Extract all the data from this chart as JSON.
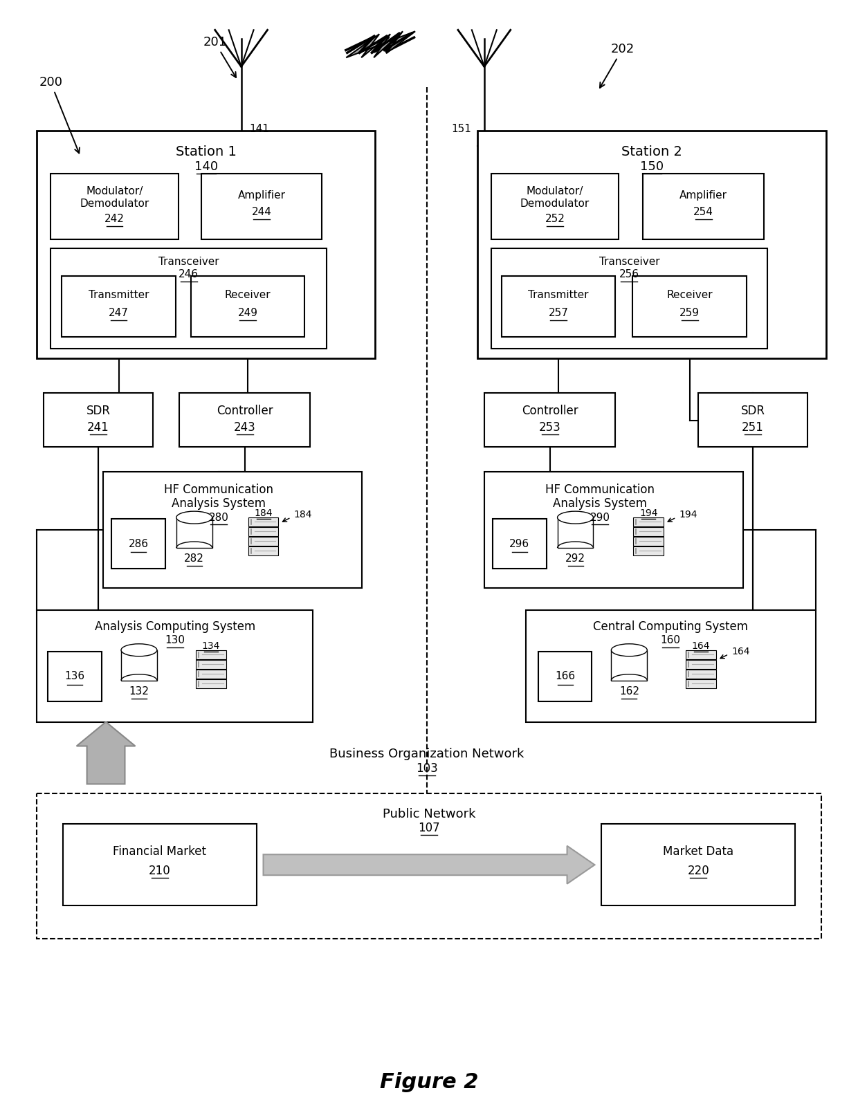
{
  "bg_color": "#ffffff",
  "line_color": "#000000",
  "figure_title": "Figure 2",
  "labels": {
    "200": "200",
    "201": "201",
    "202": "202",
    "141": "141",
    "151": "151",
    "station1": "Station 1",
    "s1num": "140",
    "station2": "Station 2",
    "s2num": "150",
    "mod1": "Modulator/",
    "demod1": "Demodulator",
    "mn1": "242",
    "amp1": "Amplifier",
    "an1": "244",
    "tc1": "Transceiver",
    "tcn1": "246",
    "tx1": "Transmitter",
    "txn1": "247",
    "rx1": "Receiver",
    "rxn1": "249",
    "sdr1": "SDR",
    "sdrn1": "241",
    "ctrl1": "Controller",
    "ctrln1": "243",
    "hf1a": "HF Communication",
    "hf1b": "Analysis System",
    "hfn1": "280",
    "b286": "286",
    "b282": "282",
    "srv184": "184",
    "mod2": "Modulator/",
    "demod2": "Demodulator",
    "mn2": "252",
    "amp2": "Amplifier",
    "an2": "254",
    "tc2": "Transceiver",
    "tcn2": "256",
    "tx2": "Transmitter",
    "txn2": "257",
    "rx2": "Receiver",
    "rxn2": "259",
    "ctrl2": "Controller",
    "ctrln2": "253",
    "sdr2": "SDR",
    "sdrn2": "251",
    "hf2a": "HF Communication",
    "hf2b": "Analysis System",
    "hfn2": "290",
    "b296": "296",
    "b292": "292",
    "srv194": "194",
    "acs": "Analysis Computing System",
    "acsn": "130",
    "b136": "136",
    "b132": "132",
    "srv134": "134",
    "ccs": "Central Computing System",
    "ccsn": "160",
    "b166": "166",
    "b162": "162",
    "srv164": "164",
    "busnet": "Business Organization Network",
    "busnetn": "103",
    "pubnet": "Public Network",
    "pubnetn": "107",
    "finmkt": "Financial Market",
    "finmktn": "210",
    "mktdata": "Market Data",
    "mktdatan": "220"
  }
}
